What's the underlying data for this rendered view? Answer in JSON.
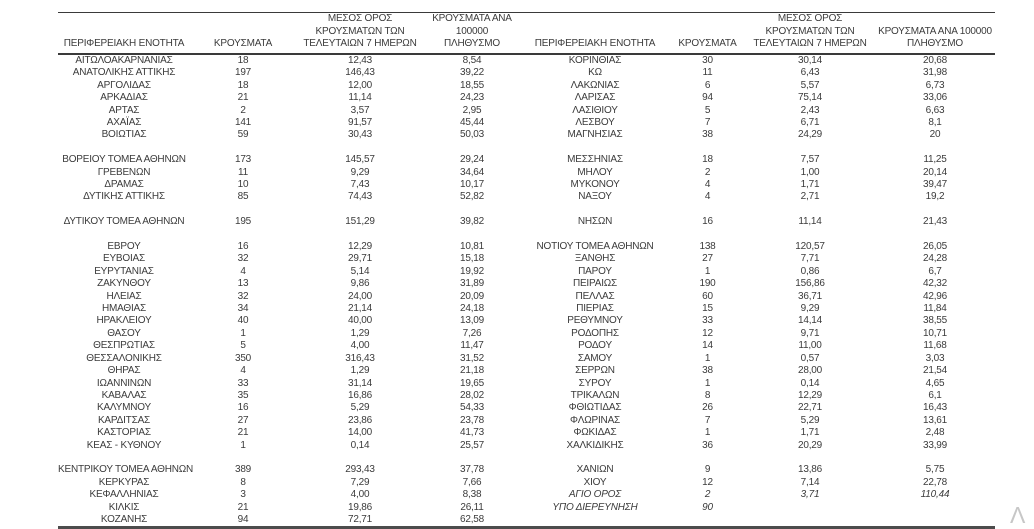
{
  "page": {
    "watermark_glyph": "Λ"
  },
  "table": {
    "column_headers": {
      "region": "ΠΕΡΙΦΕΡΕΙΑΚΗ ΕΝΟΤΗΤΑ",
      "cases": "ΚΡΟΥΣΜΑΤΑ",
      "avg_7day": "ΜΕΣΟΣ ΟΡΟΣ\nΚΡΟΥΣΜΑΤΩΝ ΤΩΝ\nΤΕΛΕΥΤΑΙΩΝ 7 ΗΜΕΡΩΝ",
      "per_100k": "ΚΡΟΥΣΜΑΤΑ ΑΝΑ 100000\nΠΛΗΘΥΣΜΟ"
    },
    "rows": [
      {
        "left": [
          "ΑΙΤΩΛΟΑΚΑΡΝΑΝΙΑΣ",
          "18",
          "12,43",
          "8,54"
        ],
        "right": [
          "ΚΟΡΙΝΘΙΑΣ",
          "30",
          "30,14",
          "20,68"
        ]
      },
      {
        "left": [
          "ΑΝΑΤΟΛΙΚΗΣ ΑΤΤΙΚΗΣ",
          "197",
          "146,43",
          "39,22"
        ],
        "right": [
          "ΚΩ",
          "11",
          "6,43",
          "31,98"
        ]
      },
      {
        "left": [
          "ΑΡΓΟΛΙΔΑΣ",
          "18",
          "12,00",
          "18,55"
        ],
        "right": [
          "ΛΑΚΩΝΙΑΣ",
          "6",
          "5,57",
          "6,73"
        ]
      },
      {
        "left": [
          "ΑΡΚΑΔΙΑΣ",
          "21",
          "11,14",
          "24,23"
        ],
        "right": [
          "ΛΑΡΙΣΑΣ",
          "94",
          "75,14",
          "33,06"
        ]
      },
      {
        "left": [
          "ΑΡΤΑΣ",
          "2",
          "3,57",
          "2,95"
        ],
        "right": [
          "ΛΑΣΙΘΙΟΥ",
          "5",
          "2,43",
          "6,63"
        ]
      },
      {
        "left": [
          "ΑΧΑΪΑΣ",
          "141",
          "91,57",
          "45,44"
        ],
        "right": [
          "ΛΕΣΒΟΥ",
          "7",
          "6,71",
          "8,1"
        ]
      },
      {
        "left": [
          "ΒΟΙΩΤΙΑΣ",
          "59",
          "30,43",
          "50,03"
        ],
        "right": [
          "ΜΑΓΝΗΣΙΑΣ",
          "38",
          "24,29",
          "20"
        ]
      },
      {
        "left": null,
        "right": null
      },
      {
        "left": [
          "ΒΟΡΕΙΟΥ ΤΟΜΕΑ ΑΘΗΝΩΝ",
          "173",
          "145,57",
          "29,24"
        ],
        "right": [
          "ΜΕΣΣΗΝΙΑΣ",
          "18",
          "7,57",
          "11,25"
        ]
      },
      {
        "left": [
          "ΓΡΕΒΕΝΩΝ",
          "11",
          "9,29",
          "34,64"
        ],
        "right": [
          "ΜΗΛΟΥ",
          "2",
          "1,00",
          "20,14"
        ]
      },
      {
        "left": [
          "ΔΡΑΜΑΣ",
          "10",
          "7,43",
          "10,17"
        ],
        "right": [
          "ΜΥΚΟΝΟΥ",
          "4",
          "1,71",
          "39,47"
        ]
      },
      {
        "left": [
          "ΔΥΤΙΚΗΣ ΑΤΤΙΚΗΣ",
          "85",
          "74,43",
          "52,82"
        ],
        "right": [
          "ΝΑΞΟΥ",
          "4",
          "2,71",
          "19,2"
        ]
      },
      {
        "left": null,
        "right": null
      },
      {
        "left": [
          "ΔΥΤΙΚΟΥ ΤΟΜΕΑ ΑΘΗΝΩΝ",
          "195",
          "151,29",
          "39,82"
        ],
        "right": [
          "ΝΗΣΩΝ",
          "16",
          "11,14",
          "21,43"
        ]
      },
      {
        "left": null,
        "right": null
      },
      {
        "left": [
          "ΕΒΡΟΥ",
          "16",
          "12,29",
          "10,81"
        ],
        "right": [
          "ΝΟΤΙΟΥ ΤΟΜΕΑ ΑΘΗΝΩΝ",
          "138",
          "120,57",
          "26,05"
        ]
      },
      {
        "left": [
          "ΕΥΒΟΙΑΣ",
          "32",
          "29,71",
          "15,18"
        ],
        "right": [
          "ΞΑΝΘΗΣ",
          "27",
          "7,71",
          "24,28"
        ]
      },
      {
        "left": [
          "ΕΥΡΥΤΑΝΙΑΣ",
          "4",
          "5,14",
          "19,92"
        ],
        "right": [
          "ΠΑΡΟΥ",
          "1",
          "0,86",
          "6,7"
        ]
      },
      {
        "left": [
          "ΖΑΚΥΝΘΟΥ",
          "13",
          "9,86",
          "31,89"
        ],
        "right": [
          "ΠΕΙΡΑΙΩΣ",
          "190",
          "156,86",
          "42,32"
        ]
      },
      {
        "left": [
          "ΗΛΕΙΑΣ",
          "32",
          "24,00",
          "20,09"
        ],
        "right": [
          "ΠΕΛΛΑΣ",
          "60",
          "36,71",
          "42,96"
        ]
      },
      {
        "left": [
          "ΗΜΑΘΙΑΣ",
          "34",
          "21,14",
          "24,18"
        ],
        "right": [
          "ΠΙΕΡΙΑΣ",
          "15",
          "9,29",
          "11,84"
        ]
      },
      {
        "left": [
          "ΗΡΑΚΛΕΙΟΥ",
          "40",
          "40,00",
          "13,09"
        ],
        "right": [
          "ΡΕΘΥΜΝΟΥ",
          "33",
          "14,14",
          "38,55"
        ]
      },
      {
        "left": [
          "ΘΑΣΟΥ",
          "1",
          "1,29",
          "7,26"
        ],
        "right": [
          "ΡΟΔΟΠΗΣ",
          "12",
          "9,71",
          "10,71"
        ]
      },
      {
        "left": [
          "ΘΕΣΠΡΩΤΙΑΣ",
          "5",
          "4,00",
          "11,47"
        ],
        "right": [
          "ΡΟΔΟΥ",
          "14",
          "11,00",
          "11,68"
        ]
      },
      {
        "left": [
          "ΘΕΣΣΑΛΟΝΙΚΗΣ",
          "350",
          "316,43",
          "31,52"
        ],
        "right": [
          "ΣΑΜΟΥ",
          "1",
          "0,57",
          "3,03"
        ]
      },
      {
        "left": [
          "ΘΗΡΑΣ",
          "4",
          "1,29",
          "21,18"
        ],
        "right": [
          "ΣΕΡΡΩΝ",
          "38",
          "28,00",
          "21,54"
        ]
      },
      {
        "left": [
          "ΙΩΑΝΝΙΝΩΝ",
          "33",
          "31,14",
          "19,65"
        ],
        "right": [
          "ΣΥΡΟΥ",
          "1",
          "0,14",
          "4,65"
        ]
      },
      {
        "left": [
          "ΚΑΒΑΛΑΣ",
          "35",
          "16,86",
          "28,02"
        ],
        "right": [
          "ΤΡΙΚΑΛΩΝ",
          "8",
          "12,29",
          "6,1"
        ]
      },
      {
        "left": [
          "ΚΑΛΥΜΝΟΥ",
          "16",
          "5,29",
          "54,33"
        ],
        "right": [
          "ΦΘΙΩΤΙΔΑΣ",
          "26",
          "22,71",
          "16,43"
        ]
      },
      {
        "left": [
          "ΚΑΡΔΙΤΣΑΣ",
          "27",
          "23,86",
          "23,78"
        ],
        "right": [
          "ΦΛΩΡΙΝΑΣ",
          "7",
          "5,29",
          "13,61"
        ]
      },
      {
        "left": [
          "ΚΑΣΤΟΡΙΑΣ",
          "21",
          "14,00",
          "41,73"
        ],
        "right": [
          "ΦΩΚΙΔΑΣ",
          "1",
          "1,71",
          "2,48"
        ]
      },
      {
        "left": [
          "ΚΕΑΣ - ΚΥΘΝΟΥ",
          "1",
          "0,14",
          "25,57"
        ],
        "right": [
          "ΧΑΛΚΙΔΙΚΗΣ",
          "36",
          "20,29",
          "33,99"
        ]
      },
      {
        "left": null,
        "right": null
      },
      {
        "left": [
          "ΚΕΝΤΡΙΚΟΥ ΤΟΜΕΑ ΑΘΗΝΩΝ",
          "389",
          "293,43",
          "37,78"
        ],
        "right": [
          "ΧΑΝΙΩΝ",
          "9",
          "13,86",
          "5,75"
        ]
      },
      {
        "left": [
          "ΚΕΡΚΥΡΑΣ",
          "8",
          "7,29",
          "7,66"
        ],
        "right": [
          "ΧΙΟΥ",
          "12",
          "7,14",
          "22,78"
        ]
      },
      {
        "left": [
          "ΚΕΦΑΛΛΗΝΙΑΣ",
          "3",
          "4,00",
          "8,38"
        ],
        "right": [
          "ΑΓΙΟ ΟΡΟΣ",
          "2",
          "3,71",
          "110,44"
        ],
        "right_italic": true
      },
      {
        "left": [
          "ΚΙΛΚΙΣ",
          "21",
          "19,86",
          "26,11"
        ],
        "right": [
          "ΥΠΟ ΔΙΕΡΕΥΝΗΣΗ",
          "90",
          "",
          ""
        ],
        "right_italic": true
      },
      {
        "left": [
          "ΚΟΖΑΝΗΣ",
          "94",
          "72,71",
          "62,58"
        ],
        "right": null
      }
    ]
  }
}
